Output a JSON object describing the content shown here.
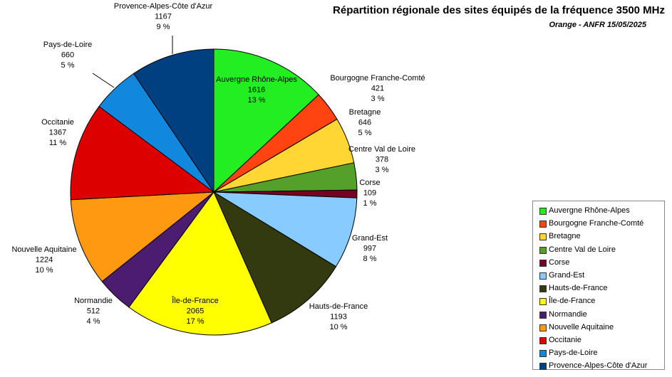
{
  "chart_data": {
    "type": "pie",
    "title": "Répartition régionale des sites équipés de la fréquence 3500 MHz",
    "subtitle": "Orange - ANFR 15/05/2025",
    "legend_position": "right",
    "slices": [
      {
        "name": "Auvergne Rhône-Alpes",
        "value": 1616,
        "percent": "13 %",
        "color": "#22ee22"
      },
      {
        "name": "Bourgogne Franche-Comté",
        "value": 421,
        "percent": "3 %",
        "color": "#ff4411"
      },
      {
        "name": "Bretagne",
        "value": 646,
        "percent": "5 %",
        "color": "#ffd633"
      },
      {
        "name": "Centre Val de Loire",
        "value": 378,
        "percent": "3 %",
        "color": "#55a02a"
      },
      {
        "name": "Corse",
        "value": 109,
        "percent": "1 %",
        "color": "#770022"
      },
      {
        "name": "Grand-Est",
        "value": 997,
        "percent": "8 %",
        "color": "#88ccff"
      },
      {
        "name": "Hauts-de-France",
        "value": 1193,
        "percent": "10 %",
        "color": "#333a0f"
      },
      {
        "name": "Île-de-France",
        "value": 2065,
        "percent": "17 %",
        "color": "#ffff00"
      },
      {
        "name": "Normandie",
        "value": 512,
        "percent": "4 %",
        "color": "#4c1c70"
      },
      {
        "name": "Nouvelle Aquitaine",
        "value": 1224,
        "percent": "10 %",
        "color": "#ff9911"
      },
      {
        "name": "Occitanie",
        "value": 1367,
        "percent": "11 %",
        "color": "#dd0000"
      },
      {
        "name": "Pays-de-Loire",
        "value": 660,
        "percent": "5 %",
        "color": "#1188dd"
      },
      {
        "name": "Provence-Alpes-Côte d'Azur",
        "value": 1167,
        "percent": "9 %",
        "color": "#004080"
      }
    ]
  }
}
